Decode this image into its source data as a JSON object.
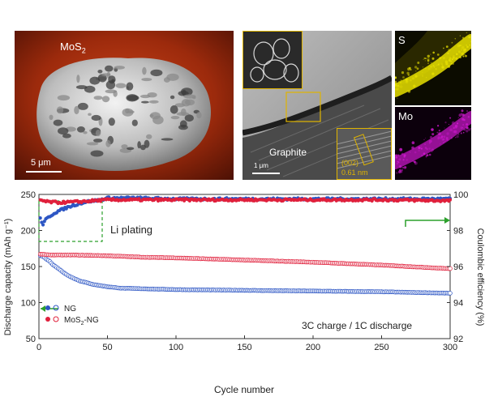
{
  "sem_panel": {
    "label": "MoS",
    "label_sub": "2",
    "scale_bar": "5 μm"
  },
  "tem_panel": {
    "label": "Graphite",
    "scale_bar": "1 μm",
    "inset_plane": "(002)",
    "inset_spacing": "0.61 nm"
  },
  "eds_maps": [
    {
      "element": "S",
      "color": "#e8e000"
    },
    {
      "element": "Mo",
      "color": "#d018d0"
    }
  ],
  "chart_data": {
    "type": "scatter",
    "xlabel": "Cycle number",
    "ylabel_left": "Discharge capacity (mAh g⁻¹)",
    "ylabel_right": "Coulombic efficiency (%)",
    "xlim": [
      0,
      300
    ],
    "ylim_left": [
      50,
      250
    ],
    "ylim_right": [
      92,
      100
    ],
    "x_ticks": [
      "0",
      "50",
      "100",
      "150",
      "200",
      "250",
      "300"
    ],
    "y_left_ticks": [
      "50",
      "100",
      "150",
      "200",
      "250"
    ],
    "y_right_ticks": [
      "92",
      "94",
      "96",
      "98",
      "100"
    ],
    "annotations": {
      "plating": "Li plating",
      "condition": "3C charge / 1C discharge"
    },
    "legend": {
      "placement": "bottom-left",
      "entries": [
        {
          "name": "NG",
          "color": "#2d56c4"
        },
        {
          "name": "MoS",
          "sub": "2",
          "suffix": "-NG",
          "color": "#e0203c"
        }
      ]
    },
    "series": [
      {
        "name": "NG",
        "axis": "left",
        "marker": "hollow",
        "color": "#2d56c4",
        "points": [
          [
            1,
            165
          ],
          [
            3,
            164
          ],
          [
            5,
            161
          ],
          [
            8,
            157
          ],
          [
            10,
            153
          ],
          [
            15,
            146
          ],
          [
            20,
            139
          ],
          [
            25,
            134
          ],
          [
            30,
            130
          ],
          [
            40,
            125
          ],
          [
            50,
            122
          ],
          [
            60,
            120
          ],
          [
            80,
            119
          ],
          [
            100,
            118
          ],
          [
            150,
            117
          ],
          [
            200,
            116
          ],
          [
            250,
            115
          ],
          [
            300,
            113
          ]
        ]
      },
      {
        "name": "MoS2-NG",
        "axis": "left",
        "marker": "hollow",
        "color": "#e0203c",
        "points": [
          [
            1,
            167
          ],
          [
            10,
            166
          ],
          [
            25,
            166
          ],
          [
            50,
            165
          ],
          [
            75,
            163
          ],
          [
            100,
            162
          ],
          [
            150,
            159
          ],
          [
            200,
            156
          ],
          [
            250,
            152
          ],
          [
            300,
            147
          ]
        ]
      },
      {
        "name": "NG",
        "axis": "right",
        "marker": "filled",
        "color": "#2d56c4",
        "points": [
          [
            1,
            98.7
          ],
          [
            3,
            98.3
          ],
          [
            5,
            98.6
          ],
          [
            8,
            98.8
          ],
          [
            12,
            99.0
          ],
          [
            18,
            99.2
          ],
          [
            25,
            99.4
          ],
          [
            35,
            99.6
          ],
          [
            45,
            99.7
          ],
          [
            50,
            99.8
          ],
          [
            70,
            99.8
          ],
          [
            100,
            99.75
          ],
          [
            150,
            99.75
          ],
          [
            200,
            99.75
          ],
          [
            250,
            99.75
          ],
          [
            300,
            99.75
          ]
        ]
      },
      {
        "name": "MoS2-NG",
        "axis": "right",
        "marker": "filled",
        "color": "#e0203c",
        "points": [
          [
            1,
            99.7
          ],
          [
            5,
            99.6
          ],
          [
            15,
            99.55
          ],
          [
            30,
            99.6
          ],
          [
            50,
            99.7
          ],
          [
            100,
            99.7
          ],
          [
            150,
            99.7
          ],
          [
            200,
            99.7
          ],
          [
            250,
            99.7
          ],
          [
            300,
            99.65
          ]
        ]
      }
    ]
  }
}
